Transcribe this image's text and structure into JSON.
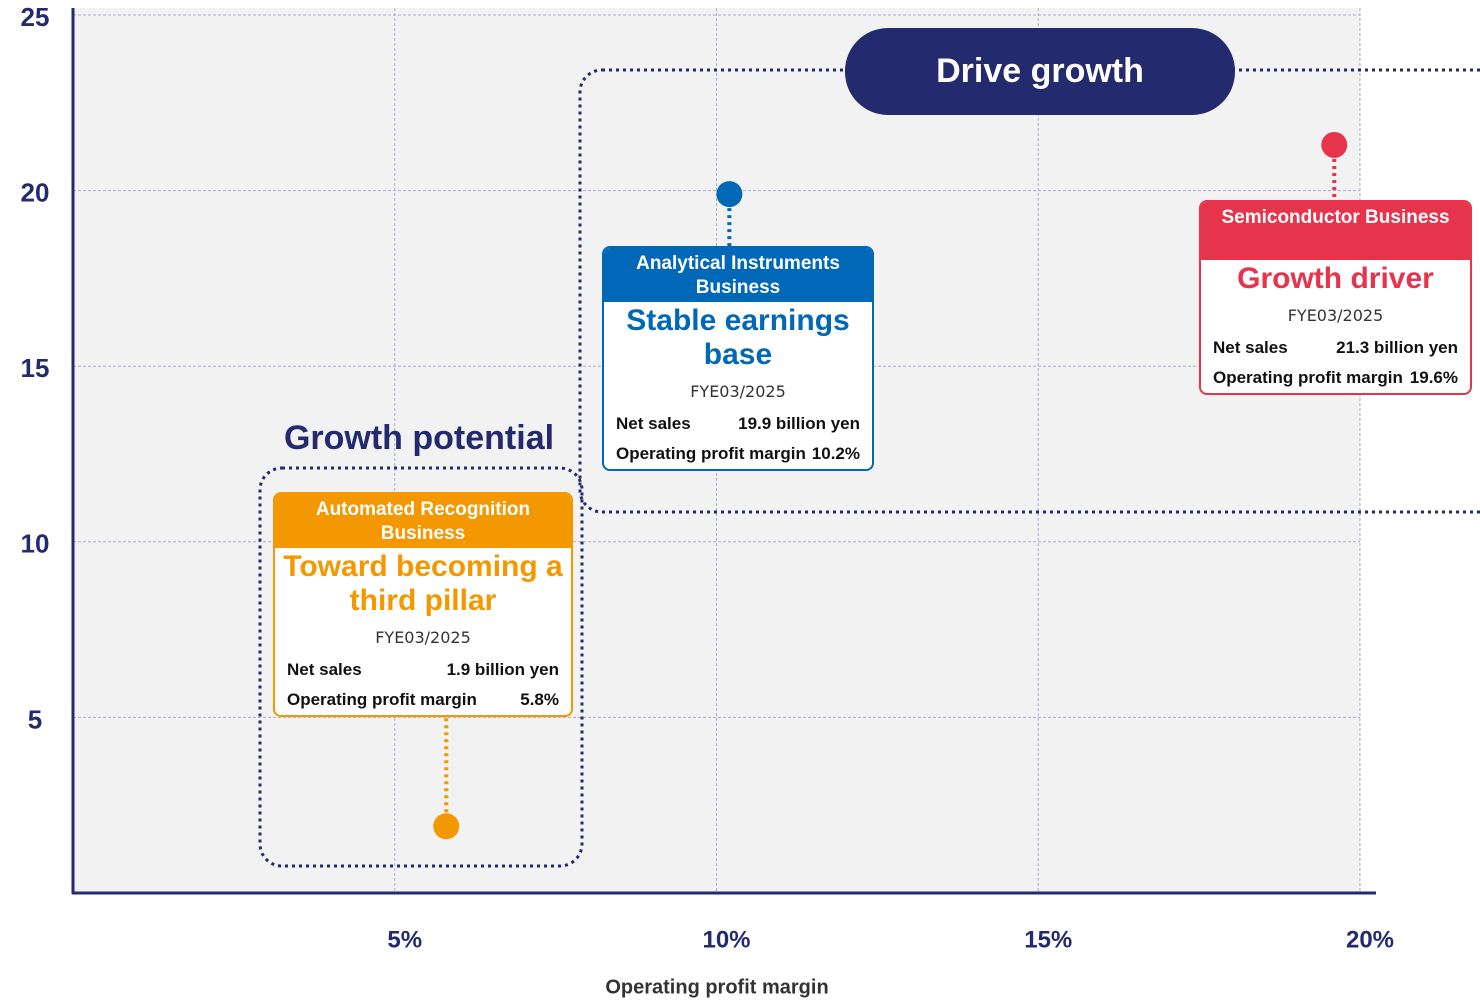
{
  "chart_data": {
    "type": "scatter",
    "x_label": "Operating profit margin",
    "sales_label": "Net sales",
    "period": "FYE03/2025",
    "xlim": [
      0,
      20
    ],
    "xticks": [
      {
        "value": 5,
        "label": "5%"
      },
      {
        "value": 10,
        "label": "10%"
      },
      {
        "value": 15,
        "label": "15%"
      },
      {
        "value": 20,
        "label": "20%"
      }
    ],
    "ylim": [
      0,
      25
    ],
    "yticks": [
      5,
      10,
      15,
      20,
      25
    ],
    "grid": true,
    "annotations": [
      {
        "text": "Drive growth"
      },
      {
        "text": "Growth potential"
      }
    ],
    "series": [
      {
        "name": "Automated Recognition Business",
        "tagline": "Toward becoming a third pillar",
        "color": "#f39800",
        "x": [
          5.8
        ],
        "values": [
          1.9
        ],
        "value_labels": [
          "1.9 billion yen"
        ],
        "x_labels": [
          "5.8%"
        ]
      },
      {
        "name": "Analytical Instruments Business",
        "tagline": "Stable earnings base",
        "color": "#0068b7",
        "x": [
          10.2
        ],
        "values": [
          19.9
        ],
        "value_labels": [
          "19.9 billion yen"
        ],
        "x_labels": [
          "10.2%"
        ]
      },
      {
        "name": "Semiconductor Business",
        "tagline": "Growth driver",
        "color": "#e5344b",
        "x": [
          19.6
        ],
        "values": [
          21.3
        ],
        "value_labels": [
          "21.3 billion yen"
        ],
        "x_labels": [
          "19.6%"
        ]
      }
    ]
  }
}
